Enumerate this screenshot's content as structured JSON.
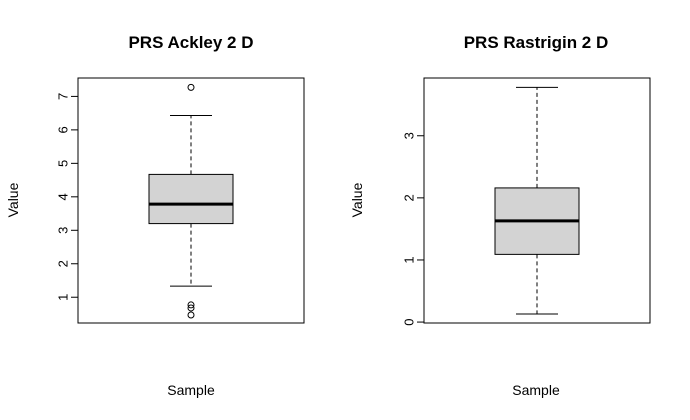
{
  "chart_data": [
    {
      "type": "boxplot",
      "title": "PRS Ackley 2 D",
      "xlabel": "Sample",
      "ylabel": "Value",
      "ylim": [
        0.23,
        7.55
      ],
      "yticks": [
        1,
        2,
        3,
        4,
        5,
        6,
        7
      ],
      "grid": false,
      "box": {
        "whisker_low": 1.33,
        "q1": 3.2,
        "median": 3.78,
        "q3": 4.67,
        "whisker_high": 6.43,
        "outliers": [
          7.27,
          0.77,
          0.68,
          0.47
        ]
      }
    },
    {
      "type": "boxplot",
      "title": "PRS Rastrigin 2 D",
      "xlabel": "Sample",
      "ylabel": "Value",
      "ylim": [
        -0.015,
        3.93
      ],
      "yticks": [
        0,
        1,
        2,
        3
      ],
      "grid": false,
      "box": {
        "whisker_low": 0.13,
        "q1": 1.09,
        "median": 1.63,
        "q3": 2.16,
        "whisker_high": 3.78,
        "outliers": []
      }
    }
  ]
}
